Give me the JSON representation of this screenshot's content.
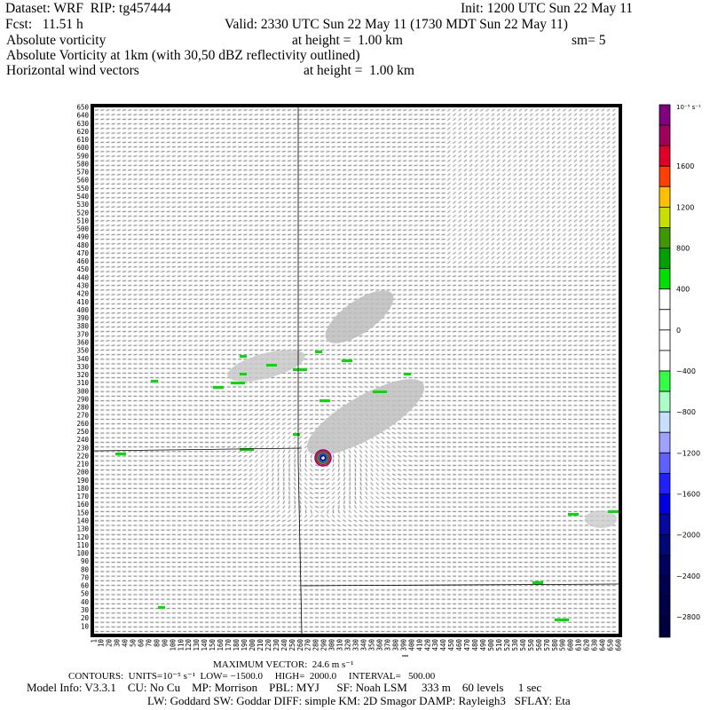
{
  "header": {
    "dataset": "Dataset: WRF  RIP: tg457444",
    "init": "Init: 1200 UTC Sun 22 May 11",
    "fcst": "Fcst:   11.51 h",
    "valid": "Valid: 2330 UTC Sun 22 May 11 (1730 MDT Sun 22 May 11)",
    "field1": "Absolute vorticity",
    "field1_height": "at height =  1.00 km",
    "field1_sm": "sm= 5",
    "field2": "Absolute Vorticity at 1km (with 30,50 dBZ reflectivity outlined)",
    "field3": "Horizontal wind vectors",
    "field3_height": "at height =  1.00 km"
  },
  "footer": {
    "max_vector": "MAXIMUM VECTOR:  24.6 m s⁻¹",
    "contours": "CONTOURS:  UNITS=10⁻⁵ s⁻¹  LOW= −1500.0     HIGH=  2000.0     INTERVAL=   500.00",
    "model_info": "Model Info: V3.3.1    CU: No Cu    MP: Morrison    PBL: MYJ      SF: Noah LSM     333 m    60 levels     1 sec",
    "model_info2": "LW: Goddard SW: Goddar DIFF: simple KM: 2D Smagor DAMP: Rayleigh3   SFLAY: Eta"
  },
  "chart_data": {
    "type": "heatmap",
    "title": "Absolute Vorticity at 1km (with 30,50 dBZ reflectivity outlined)",
    "xlabel": "",
    "ylabel": "",
    "xlim": [
      1,
      660
    ],
    "ylim": [
      1,
      650
    ],
    "x_ticks": [
      1,
      10,
      20,
      30,
      40,
      50,
      60,
      70,
      80,
      90,
      100,
      110,
      120,
      130,
      140,
      150,
      160,
      170,
      180,
      190,
      200,
      210,
      220,
      230,
      240,
      250,
      260,
      270,
      280,
      290,
      300,
      310,
      320,
      330,
      340,
      350,
      360,
      370,
      380,
      390,
      400,
      410,
      420,
      430,
      440,
      450,
      460,
      470,
      480,
      490,
      500,
      510,
      520,
      530,
      540,
      550,
      560,
      570,
      580,
      590,
      600,
      610,
      620,
      630,
      640,
      650,
      660
    ],
    "y_ticks": [
      10,
      20,
      30,
      40,
      50,
      60,
      70,
      80,
      90,
      100,
      110,
      120,
      130,
      140,
      150,
      160,
      170,
      180,
      190,
      200,
      210,
      220,
      230,
      240,
      250,
      260,
      270,
      280,
      290,
      300,
      310,
      320,
      330,
      340,
      350,
      360,
      370,
      380,
      390,
      400,
      410,
      420,
      430,
      440,
      450,
      460,
      470,
      480,
      490,
      500,
      510,
      520,
      530,
      540,
      550,
      560,
      570,
      580,
      590,
      600,
      610,
      620,
      630,
      640,
      650
    ],
    "colorbar": {
      "units": "10⁻⁵ s⁻¹",
      "labels": [
        "1600",
        "1200",
        "800",
        "400",
        "0",
        "−400",
        "−800",
        "−1200",
        "−1600",
        "−2000",
        "−2400",
        "−2800"
      ],
      "colors": [
        "#800080",
        "#a0005a",
        "#e00028",
        "#ff4000",
        "#ffc000",
        "#c8e000",
        "#409800",
        "#00a000",
        "#00e000",
        "#ffffff",
        "#ffffff",
        "#ffffff",
        "#ffffff",
        "#33ff44",
        "#aaffc8",
        "#c8e0ff",
        "#a0a0ff",
        "#6060ff",
        "#2020ff",
        "#0000e0",
        "#0808a0",
        "#000878",
        "#000060",
        "#000052",
        "#000048",
        "#000040"
      ]
    },
    "max_vector_ms": 24.6,
    "contour_low": -1500.0,
    "contour_high": 2000.0,
    "contour_interval": 500.0
  }
}
